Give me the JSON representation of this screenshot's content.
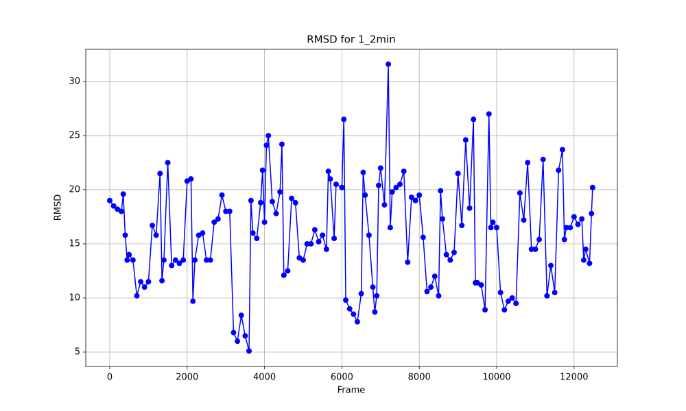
{
  "chart_data": {
    "type": "line",
    "title": "RMSD for 1_2min",
    "x_label": "Frame",
    "y_label": "RMSD",
    "x": [
      0,
      100,
      200,
      300,
      350,
      400,
      450,
      500,
      600,
      700,
      800,
      900,
      1000,
      1100,
      1200,
      1300,
      1350,
      1400,
      1500,
      1600,
      1700,
      1800,
      1900,
      2000,
      2100,
      2150,
      2200,
      2300,
      2400,
      2500,
      2600,
      2700,
      2800,
      2900,
      3000,
      3100,
      3200,
      3300,
      3400,
      3500,
      3600,
      3650,
      3700,
      3800,
      3900,
      3950,
      4000,
      4050,
      4100,
      4200,
      4300,
      4400,
      4450,
      4500,
      4600,
      4700,
      4800,
      4900,
      5000,
      5100,
      5200,
      5300,
      5400,
      5500,
      5600,
      5650,
      5700,
      5800,
      5850,
      6000,
      6050,
      6100,
      6200,
      6300,
      6400,
      6500,
      6550,
      6600,
      6700,
      6800,
      6850,
      6900,
      6950,
      7000,
      7100,
      7200,
      7250,
      7300,
      7400,
      7500,
      7600,
      7700,
      7800,
      7900,
      8000,
      8100,
      8200,
      8300,
      8400,
      8500,
      8550,
      8600,
      8700,
      8800,
      8900,
      9000,
      9100,
      9200,
      9300,
      9400,
      9450,
      9500,
      9600,
      9700,
      9800,
      9850,
      9900,
      10000,
      10100,
      10200,
      10300,
      10400,
      10500,
      10600,
      10700,
      10800,
      10900,
      11000,
      11100,
      11200,
      11300,
      11400,
      11500,
      11600,
      11700,
      11750,
      11800,
      11900,
      12000,
      12100,
      12200,
      12250,
      12300,
      12400,
      12450,
      12480
    ],
    "values": [
      19,
      18.5,
      18.2,
      18,
      19.6,
      15.8,
      13.5,
      14,
      13.5,
      10.2,
      11.5,
      11,
      11.5,
      16.7,
      15.8,
      21.5,
      11.6,
      13.5,
      22.5,
      13,
      13.5,
      13.2,
      13.5,
      20.8,
      21,
      9.7,
      13.5,
      15.8,
      16,
      13.5,
      13.5,
      17,
      17.3,
      19.5,
      18,
      18,
      6.8,
      6,
      8.4,
      6.5,
      5.1,
      19,
      16,
      15.5,
      18.8,
      21.8,
      17,
      24.1,
      25,
      18.9,
      17.8,
      19.8,
      24.2,
      12.1,
      12.5,
      19.2,
      18.8,
      13.7,
      13.5,
      15,
      15,
      16.3,
      15.2,
      15.8,
      14.5,
      21.7,
      21,
      15.5,
      20.5,
      20.2,
      26.5,
      9.8,
      9,
      8.5,
      7.8,
      10.4,
      21.6,
      19.5,
      15.8,
      11,
      8.7,
      10.2,
      20.4,
      22,
      18.6,
      31.6,
      16.5,
      19.8,
      20.2,
      20.5,
      21.7,
      13.3,
      19.3,
      19,
      19.5,
      15.6,
      10.6,
      11,
      12,
      10.2,
      19.9,
      17.3,
      14,
      13.5,
      14.2,
      21.5,
      16.7,
      24.6,
      18.3,
      26.5,
      11.4,
      11.4,
      11.2,
      8.9,
      27,
      16.5,
      17,
      16.5,
      10.5,
      8.9,
      9.7,
      10,
      9.5,
      19.7,
      17.2,
      22.5,
      14.5,
      14.5,
      15.4,
      22.8,
      10.2,
      13,
      10.5,
      21.8,
      23.7,
      15.4,
      16.5,
      16.5,
      17.5,
      16.8,
      17.3,
      13.5,
      14.5,
      13.2,
      17.8,
      20.2
    ],
    "color": "#0000ff",
    "xlim": [
      -620,
      13120
    ],
    "xticks": [
      0,
      2000,
      4000,
      6000,
      8000,
      10000,
      12000
    ],
    "ylim": [
      3.67,
      32.97
    ],
    "yticks": [
      5,
      10,
      15,
      20,
      25,
      30
    ],
    "grid": true
  }
}
